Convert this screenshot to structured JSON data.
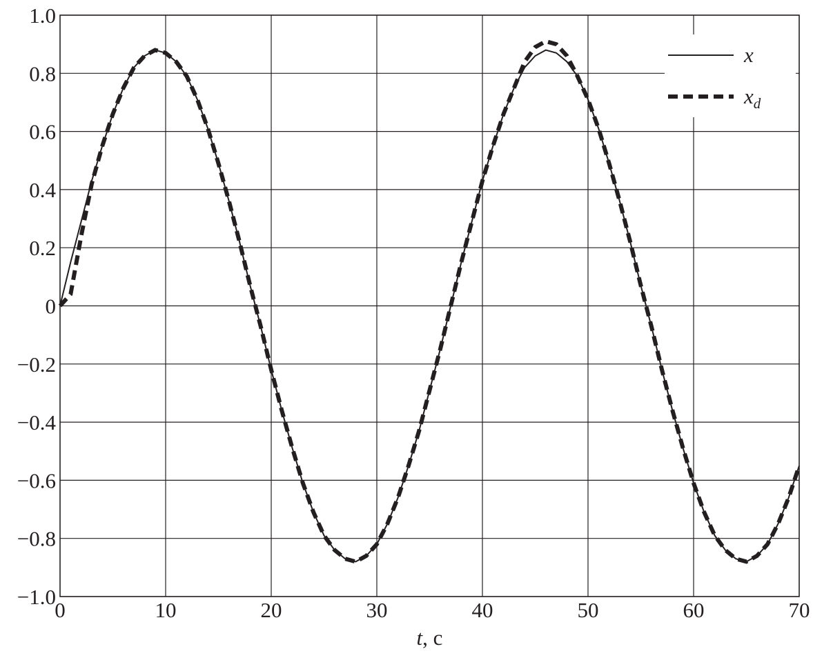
{
  "chart_data": {
    "type": "line",
    "xlabel": "t, c",
    "x": [
      0,
      1,
      2,
      3,
      4,
      5,
      6,
      7,
      8,
      9,
      10,
      11,
      12,
      13,
      14,
      15,
      16,
      17,
      18,
      19,
      20,
      21,
      22,
      23,
      24,
      25,
      26,
      27,
      28,
      29,
      30,
      31,
      32,
      33,
      34,
      35,
      36,
      37,
      38,
      39,
      40,
      41,
      42,
      43,
      44,
      45,
      46,
      47,
      48,
      49,
      50,
      51,
      52,
      53,
      54,
      55,
      56,
      57,
      58,
      59,
      60,
      61,
      62,
      63,
      64,
      65,
      66,
      67,
      68,
      69,
      70
    ],
    "series": [
      {
        "name": "x",
        "color": "#231f20",
        "style": "solid",
        "values": [
          0,
          0.15,
          0.29,
          0.43,
          0.55,
          0.66,
          0.75,
          0.82,
          0.86,
          0.88,
          0.87,
          0.84,
          0.79,
          0.71,
          0.61,
          0.49,
          0.36,
          0.22,
          0.07,
          -0.07,
          -0.22,
          -0.36,
          -0.49,
          -0.61,
          -0.71,
          -0.79,
          -0.84,
          -0.87,
          -0.88,
          -0.86,
          -0.82,
          -0.75,
          -0.66,
          -0.55,
          -0.43,
          -0.29,
          -0.15,
          0,
          0.15,
          0.29,
          0.43,
          0.55,
          0.66,
          0.75,
          0.82,
          0.86,
          0.88,
          0.87,
          0.84,
          0.79,
          0.71,
          0.61,
          0.49,
          0.36,
          0.22,
          0.07,
          -0.07,
          -0.22,
          -0.36,
          -0.49,
          -0.61,
          -0.71,
          -0.79,
          -0.84,
          -0.87,
          -0.88,
          -0.86,
          -0.82,
          -0.75,
          -0.66,
          -0.55
        ]
      },
      {
        "name": "xd",
        "color": "#231f20",
        "style": "dashed",
        "values": [
          0,
          0.04,
          0.24,
          0.42,
          0.55,
          0.66,
          0.75,
          0.82,
          0.86,
          0.88,
          0.87,
          0.84,
          0.79,
          0.71,
          0.61,
          0.49,
          0.36,
          0.22,
          0.07,
          -0.07,
          -0.22,
          -0.36,
          -0.49,
          -0.61,
          -0.71,
          -0.79,
          -0.84,
          -0.87,
          -0.88,
          -0.86,
          -0.82,
          -0.75,
          -0.66,
          -0.55,
          -0.43,
          -0.29,
          -0.15,
          0,
          0.15,
          0.29,
          0.43,
          0.55,
          0.66,
          0.75,
          0.84,
          0.89,
          0.91,
          0.9,
          0.86,
          0.79,
          0.71,
          0.61,
          0.49,
          0.36,
          0.22,
          0.07,
          -0.07,
          -0.22,
          -0.36,
          -0.49,
          -0.61,
          -0.71,
          -0.79,
          -0.84,
          -0.87,
          -0.88,
          -0.86,
          -0.82,
          -0.75,
          -0.66,
          -0.55
        ]
      }
    ],
    "xlim": [
      0,
      70
    ],
    "xticks": [
      0,
      10,
      20,
      30,
      40,
      50,
      60,
      70
    ],
    "ylim": [
      -1,
      1
    ],
    "yticks": [
      {
        "value": -1,
        "label": "−1.0"
      },
      {
        "value": -0.8,
        "label": "−0.8"
      },
      {
        "value": -0.6,
        "label": "−0.6"
      },
      {
        "value": -0.4,
        "label": "−0.4"
      },
      {
        "value": -0.2,
        "label": "−0.2"
      },
      0,
      0.2,
      0.4,
      0.6,
      0.8,
      {
        "value": 1,
        "label": "1.0"
      }
    ],
    "grid": true,
    "legend": "upper right"
  }
}
